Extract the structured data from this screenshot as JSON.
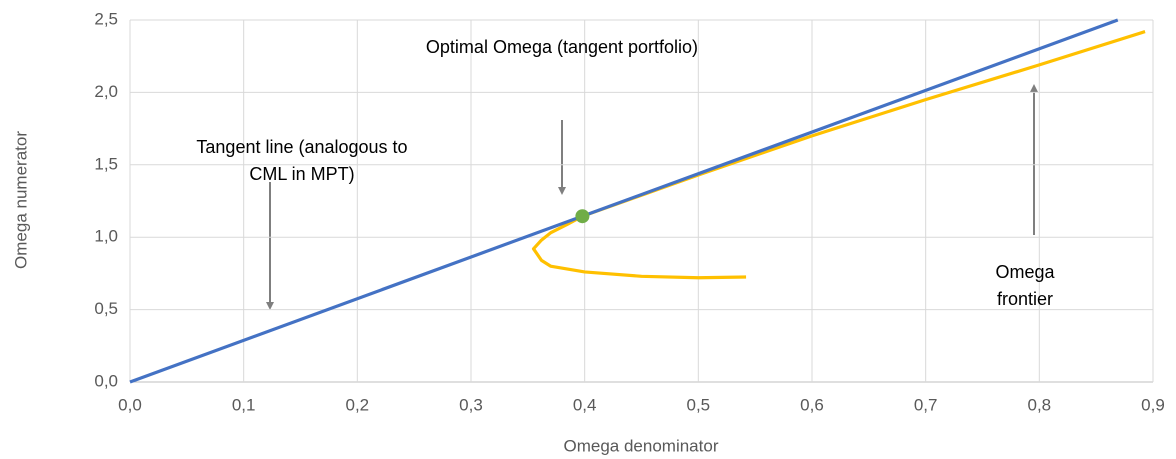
{
  "chart_data": {
    "type": "line",
    "xlabel": "Omega denominator",
    "ylabel": "Omega numerator",
    "xlim": [
      0,
      0.9
    ],
    "ylim": [
      0,
      2.5
    ],
    "xticks": [
      {
        "value": 0,
        "label": "0,0"
      },
      {
        "value": 0.1,
        "label": "0,1"
      },
      {
        "value": 0.2,
        "label": "0,2"
      },
      {
        "value": 0.3,
        "label": "0,3"
      },
      {
        "value": 0.4,
        "label": "0,4"
      },
      {
        "value": 0.5,
        "label": "0,5"
      },
      {
        "value": 0.6,
        "label": "0,6"
      },
      {
        "value": 0.7,
        "label": "0,7"
      },
      {
        "value": 0.8,
        "label": "0,8"
      },
      {
        "value": 0.9,
        "label": "0,9"
      }
    ],
    "yticks": [
      {
        "value": 0,
        "label": "0,0"
      },
      {
        "value": 0.5,
        "label": "0,5"
      },
      {
        "value": 1,
        "label": "1,0"
      },
      {
        "value": 1.5,
        "label": "1,5"
      },
      {
        "value": 2,
        "label": "2,0"
      },
      {
        "value": 2.5,
        "label": "2,5"
      }
    ],
    "grid": true,
    "series": [
      {
        "color": "#ffc000",
        "x": [
          0.542,
          0.5,
          0.45,
          0.4,
          0.37,
          0.362,
          0.355,
          0.362,
          0.37,
          0.385,
          0.398,
          0.45,
          0.5,
          0.6,
          0.7,
          0.8,
          0.893
        ],
        "values": [
          0.725,
          0.72,
          0.73,
          0.76,
          0.8,
          0.84,
          0.92,
          0.98,
          1.03,
          1.09,
          1.145,
          1.29,
          1.43,
          1.7,
          1.95,
          2.19,
          2.42
        ]
      },
      {
        "color": "#4472c4",
        "x": [
          0,
          0.869
        ],
        "values": [
          0,
          2.5
        ]
      },
      {
        "color": "#70ad47",
        "marker": "point",
        "x": [
          0.398
        ],
        "values": [
          1.145
        ]
      }
    ],
    "annotations": [
      {
        "lines": [
          "Optimal Omega (tangent portfolio)"
        ]
      },
      {
        "lines": [
          "Tangent line (analogous to",
          "CML in MPT)"
        ]
      },
      {
        "lines": [
          "Omega",
          "frontier"
        ]
      }
    ]
  }
}
